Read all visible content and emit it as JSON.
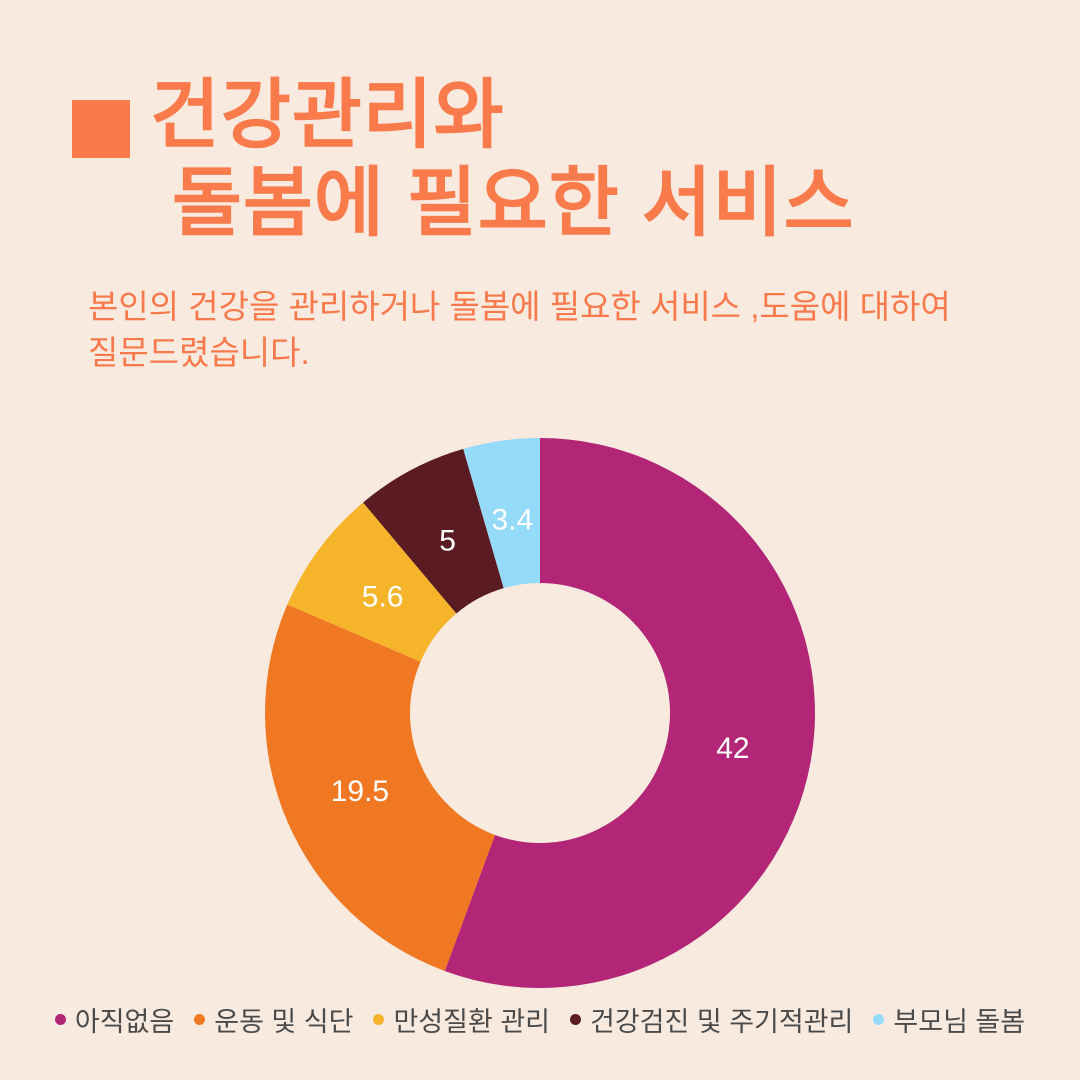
{
  "page": {
    "background_color": "#F9EADF",
    "accent_color": "#F97B4B"
  },
  "header": {
    "bullet_icon": "orange-square",
    "title_line1": "건강관리와",
    "title_line2": "돌봄에 필요한 서비스",
    "subtitle_line1": "본인의 건강을 관리하거나 돌봄에 필요한 서비스 ,도움에 대하여",
    "subtitle_line2": "질문드렸습니다."
  },
  "chart_data": {
    "type": "pie",
    "subtype": "donut",
    "start_angle_deg": 0,
    "direction": "clockwise",
    "categories": [
      "아직없음",
      "운동 및 식단",
      "만성질환 관리",
      "건강검진 및 주기적관리",
      "부모님 돌봄"
    ],
    "values": [
      42,
      19.5,
      5.6,
      5,
      3.4
    ],
    "labels": [
      "42",
      "19.5",
      "5.6",
      "5",
      "3.4"
    ],
    "colors": [
      "#B22577",
      "#F07822",
      "#F6B42A",
      "#5A1C22",
      "#95DAF8"
    ],
    "label_color": "#FFFFFF",
    "legend_position": "bottom",
    "legend_text_color": "#4A4A4A"
  }
}
